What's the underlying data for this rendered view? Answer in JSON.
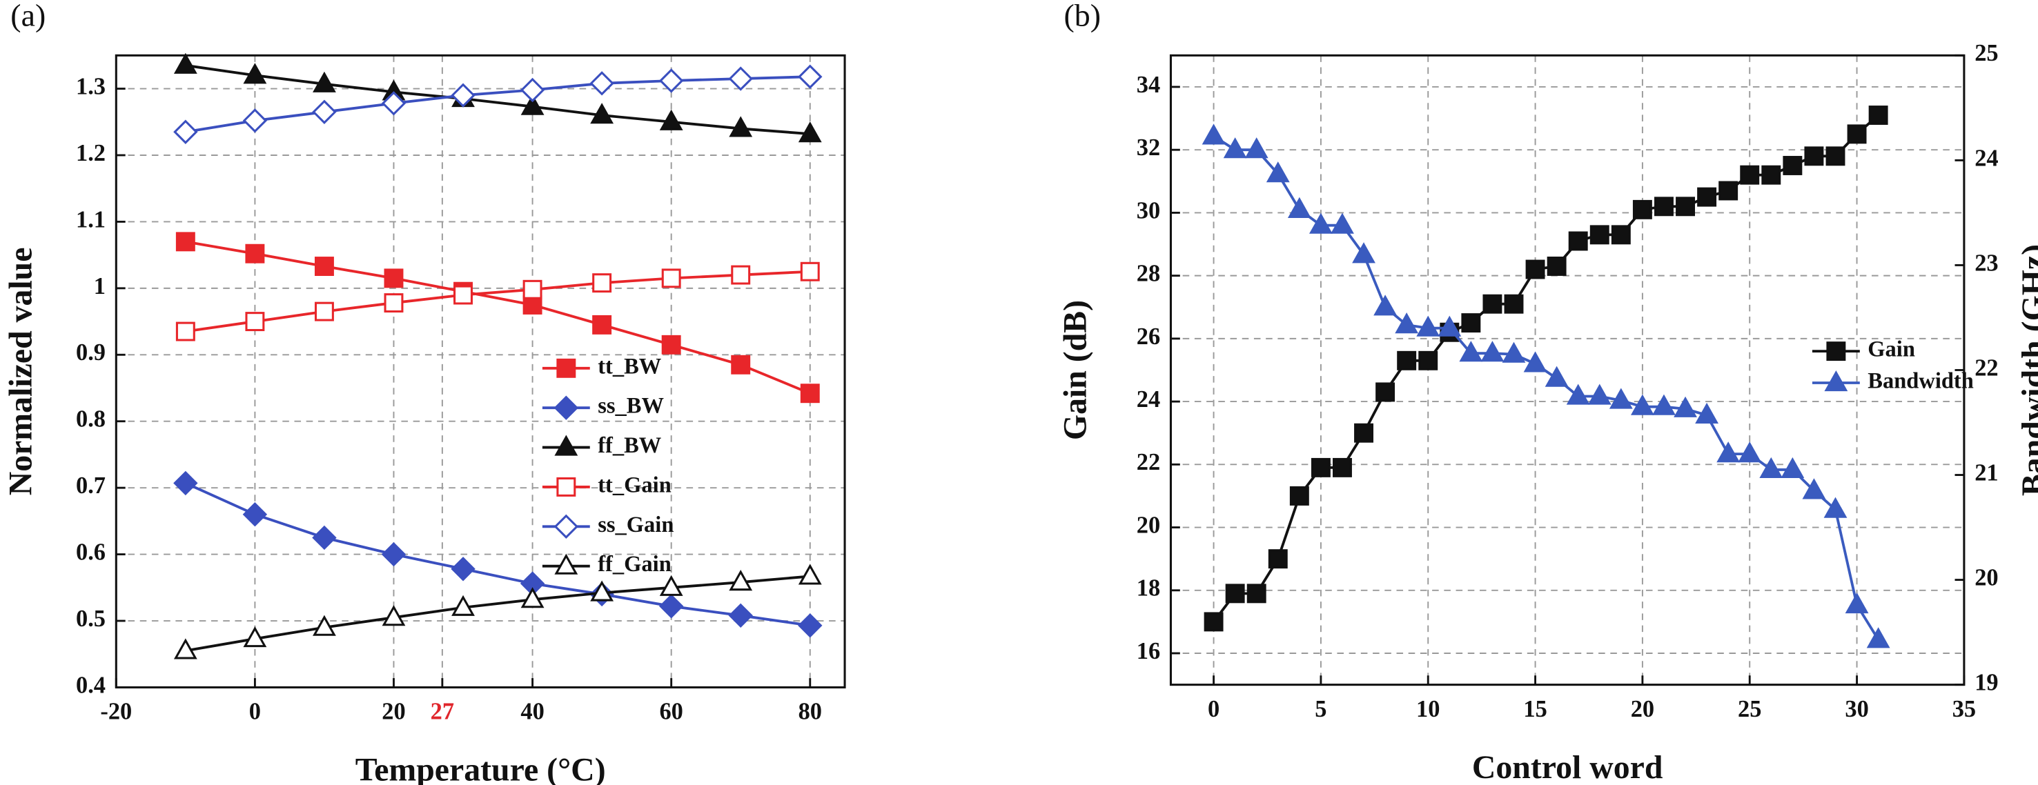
{
  "chart_data": [
    {
      "type": "line",
      "panel_label": "(a)",
      "xlabel": "Temperature (°C)",
      "ylabel": "Normalized value",
      "xlim": [
        -20,
        85
      ],
      "xticks": [
        -20,
        0,
        20,
        27,
        40,
        60,
        80
      ],
      "xtick_colors": [
        "#111111",
        "#111111",
        "#111111",
        "#e0252b",
        "#111111",
        "#111111",
        "#111111"
      ],
      "ylim": [
        0.4,
        1.35
      ],
      "yticks": [
        0.4,
        0.5,
        0.6,
        0.7,
        0.8,
        0.9,
        1,
        1.1,
        1.2,
        1.3
      ],
      "grid": true,
      "legend_loc": "center right",
      "x": [
        -10,
        0,
        10,
        20,
        30,
        40,
        50,
        60,
        70,
        80
      ],
      "series": [
        {
          "name": "tt_BW",
          "color": "#e8262a",
          "marker": "square",
          "filled": true,
          "values": [
            1.07,
            1.052,
            1.033,
            1.015,
            0.995,
            0.975,
            0.945,
            0.915,
            0.885,
            0.842
          ]
        },
        {
          "name": "ss_BW",
          "color": "#3a4fbf",
          "marker": "diamond",
          "filled": true,
          "values": [
            0.707,
            0.66,
            0.625,
            0.6,
            0.578,
            0.556,
            0.54,
            0.522,
            0.508,
            0.493
          ]
        },
        {
          "name": "ff_BW",
          "color": "#111111",
          "marker": "triangle",
          "filled": true,
          "values": [
            1.335,
            1.32,
            1.307,
            1.295,
            1.285,
            1.273,
            1.26,
            1.25,
            1.24,
            1.232
          ]
        },
        {
          "name": "tt_Gain",
          "color": "#e8262a",
          "marker": "square",
          "filled": false,
          "values": [
            0.935,
            0.95,
            0.965,
            0.978,
            0.99,
            0.998,
            1.008,
            1.015,
            1.02,
            1.025
          ]
        },
        {
          "name": "ss_Gain",
          "color": "#3a4fbf",
          "marker": "diamond",
          "filled": false,
          "values": [
            1.235,
            1.252,
            1.265,
            1.278,
            1.29,
            1.298,
            1.308,
            1.312,
            1.315,
            1.318
          ]
        },
        {
          "name": "ff_Gain",
          "color": "#111111",
          "marker": "triangle",
          "filled": false,
          "values": [
            0.455,
            0.473,
            0.49,
            0.505,
            0.52,
            0.532,
            0.542,
            0.55,
            0.558,
            0.567
          ]
        }
      ]
    },
    {
      "type": "line",
      "panel_label": "(b)",
      "xlabel": "Control word",
      "ylabel": "Gain (dB)",
      "y2label": "Bandwidth (GHz)",
      "xlim": [
        -2,
        35
      ],
      "xticks": [
        0,
        5,
        10,
        15,
        20,
        25,
        30,
        35
      ],
      "ylim": [
        15,
        35
      ],
      "yticks": [
        16,
        18,
        20,
        22,
        24,
        26,
        28,
        30,
        32,
        34
      ],
      "y2lim": [
        19,
        25
      ],
      "y2ticks": [
        19,
        20,
        21,
        22,
        23,
        24,
        25
      ],
      "grid": true,
      "legend_loc": "right",
      "x": [
        0,
        1,
        2,
        3,
        4,
        5,
        6,
        7,
        8,
        9,
        10,
        11,
        12,
        13,
        14,
        15,
        16,
        17,
        18,
        19,
        20,
        21,
        22,
        23,
        24,
        25,
        26,
        27,
        28,
        29,
        30,
        31
      ],
      "series": [
        {
          "name": "Gain",
          "color": "#111111",
          "marker": "square",
          "filled": true,
          "values": [
            17,
            17.9,
            17.9,
            19,
            21,
            21.9,
            21.9,
            23,
            24.3,
            25.3,
            25.3,
            26.2,
            26.5,
            27.1,
            27.1,
            28.2,
            28.3,
            29.1,
            29.3,
            29.3,
            30.1,
            30.2,
            30.2,
            30.5,
            30.7,
            31.2,
            31.2,
            31.5,
            31.8,
            31.8,
            32.5,
            33.1
          ]
        },
        {
          "name": "Bandwidth",
          "color": "#3a5bbf",
          "marker": "triangle",
          "filled": true,
          "axis": "y2",
          "values": [
            24.23,
            24.1,
            24.1,
            23.87,
            23.53,
            23.38,
            23.38,
            23.1,
            22.6,
            22.43,
            22.4,
            22.4,
            22.16,
            22.16,
            22.15,
            22.06,
            21.92,
            21.75,
            21.75,
            21.71,
            21.65,
            21.65,
            21.63,
            21.57,
            21.2,
            21.2,
            21.05,
            21.05,
            20.85,
            20.67,
            19.76,
            19.43
          ]
        }
      ]
    }
  ]
}
